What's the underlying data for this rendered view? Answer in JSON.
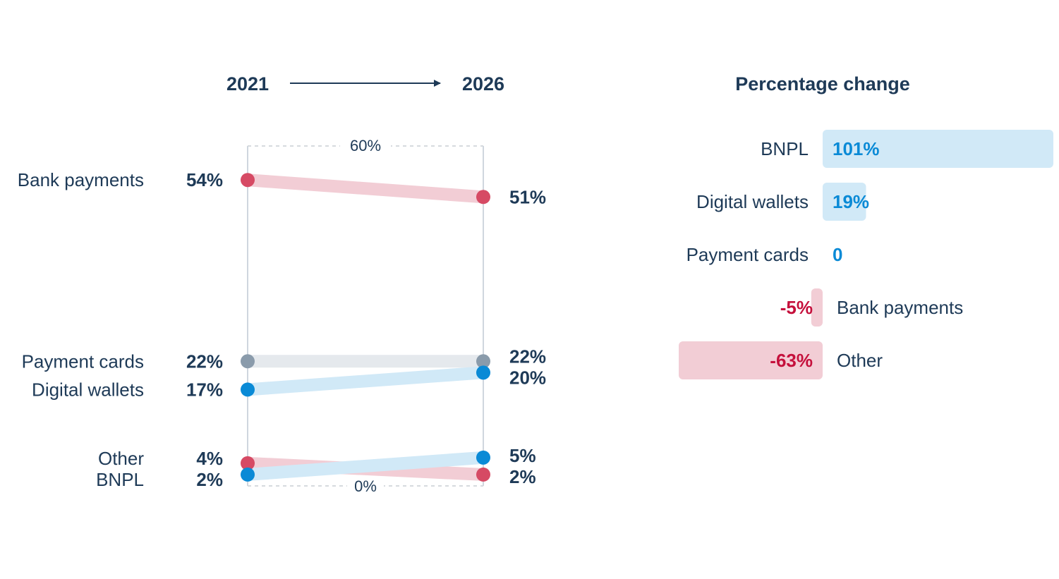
{
  "colors": {
    "text": "#1e3a57",
    "red": "#d64a64",
    "red_light": "#f2cdd5",
    "red_text": "#c5103c",
    "blue": "#0a8ad6",
    "blue_light": "#d1e9f7",
    "gray": "#8a9bab",
    "gray_light": "#e5e9ed",
    "axis": "#cfd6de",
    "grid_dash": "#c9ced4"
  },
  "chart_data": [
    {
      "type": "slope",
      "title_left": "2021",
      "title_right": "2026",
      "x": [
        "2021",
        "2026"
      ],
      "ylim": [
        0,
        60
      ],
      "top_label": "60%",
      "bottom_label": "0%",
      "series": [
        {
          "name": "Bank payments",
          "start": 54,
          "end": 51,
          "start_label": "54%",
          "end_label": "51%",
          "color": "red"
        },
        {
          "name": "Payment cards",
          "start": 22,
          "end": 22,
          "start_label": "22%",
          "end_label": "22%",
          "color": "gray"
        },
        {
          "name": "Digital wallets",
          "start": 17,
          "end": 20,
          "start_label": "17%",
          "end_label": "20%",
          "color": "blue"
        },
        {
          "name": "Other",
          "start": 4,
          "end": 2,
          "start_label": "4%",
          "end_label": "2%",
          "color": "red"
        },
        {
          "name": "BNPL",
          "start": 2,
          "end": 5,
          "start_label": "2%",
          "end_label": "5%",
          "color": "blue"
        }
      ]
    },
    {
      "type": "bar",
      "orientation": "horizontal",
      "title": "Percentage change",
      "categories": [
        "BNPL",
        "Digital wallets",
        "Payment cards",
        "Bank payments",
        "Other"
      ],
      "values": [
        101,
        19,
        0,
        -5,
        -63
      ],
      "value_labels": [
        "101%",
        "19%",
        "0",
        "-5%",
        "-63%"
      ]
    }
  ]
}
